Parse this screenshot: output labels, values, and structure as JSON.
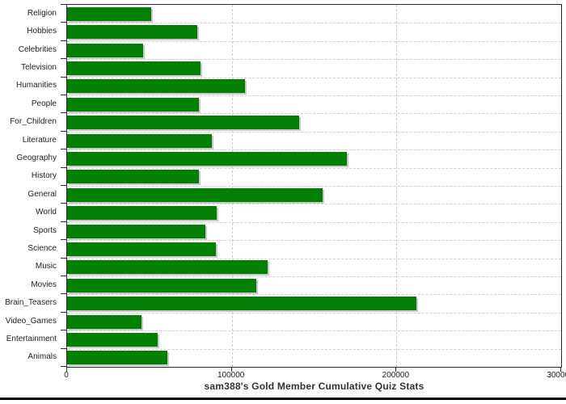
{
  "chart_data": {
    "type": "bar",
    "orientation": "horizontal",
    "title": "sam388's Gold Member Cumulative Quiz Stats",
    "categories": [
      "Religion",
      "Hobbies",
      "Celebrities",
      "Television",
      "Humanities",
      "People",
      "For_Children",
      "Literature",
      "Geography",
      "History",
      "General",
      "World",
      "Sports",
      "Science",
      "Music",
      "Movies",
      "Brain_Teasers",
      "Video_Games",
      "Entertainment",
      "Animals"
    ],
    "values": [
      51000,
      79000,
      46000,
      81000,
      108000,
      80000,
      141000,
      88000,
      170000,
      80000,
      155000,
      91000,
      84000,
      90500,
      122000,
      115000,
      212000,
      45000,
      55000,
      61000
    ],
    "xlabel": "",
    "ylabel": "",
    "xlim": [
      0,
      300000
    ],
    "x_tick_labels": [
      "0",
      "100000",
      "200000",
      "300000"
    ],
    "x_tick_values": [
      0,
      100000,
      200000,
      300000
    ],
    "x_gridline_values": [
      100000,
      200000
    ],
    "grid": "dashed light-gray vertical gridlines at ticks and horizontal lines at category boundaries",
    "legend_position": "none"
  },
  "colors": {
    "bar": "#038003",
    "bar_shadow": "#c9c9c9",
    "vgrid": "#cccccc",
    "hgrid": "#d2d2d2",
    "axis": "#2b2b2b",
    "text": "#222222",
    "title_text": "#333333",
    "bottom_rule": "#000000",
    "background": "#ffffff"
  }
}
